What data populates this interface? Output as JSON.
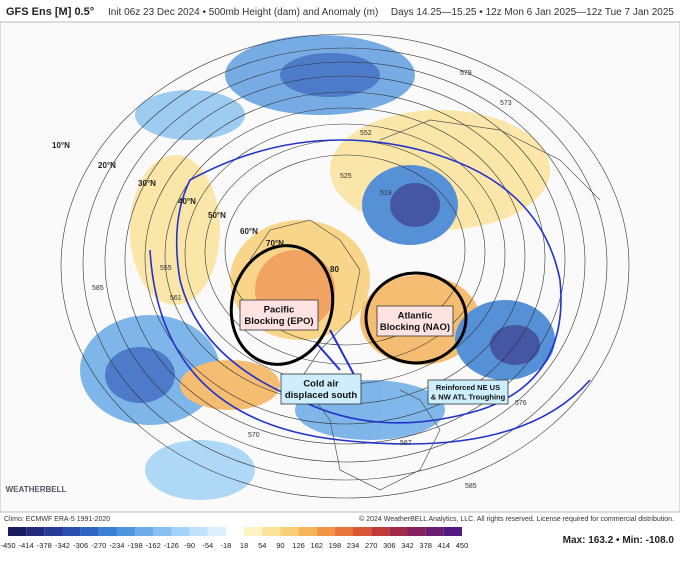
{
  "header": {
    "product": "GFS Ens [M] 0.5°",
    "description": "Init 06z 23 Dec 2024 • 500mb Height (dam) and Anomaly (m)",
    "valid": "Days 14.25—15.25 • 12z Mon 6 Jan 2025—12z Tue 7 Jan 2025"
  },
  "map": {
    "latitude_labels": [
      "10°N",
      "20°N",
      "30°N",
      "40°N",
      "50°N",
      "60°N",
      "70°N",
      "80"
    ],
    "contour_labels": [
      "552",
      "579",
      "573",
      "525",
      "519",
      "561",
      "555",
      "585",
      "570",
      "567",
      "576",
      "585"
    ],
    "annotations": [
      {
        "lines": [
          "Pacific",
          "Blocking (EPO)"
        ]
      },
      {
        "lines": [
          "Atlantic",
          "Blocking (NAO)"
        ]
      },
      {
        "lines": [
          "Cold air",
          "displaced south"
        ]
      },
      {
        "lines": [
          "Reinforced NE US",
          "& NW ATL Troughing"
        ]
      }
    ],
    "logo": "WEATHERBELL"
  },
  "footer": {
    "climo": "Climo: ECMWF ERA-5 1991-2020",
    "copyright": "© 2024 WeatherBELL Analytics, LLC. All rights reserved. License required for commercial distribution.",
    "extremes": "Max: 163.2 • Min: -108.0"
  },
  "colorbar": {
    "ticks": [
      -450,
      -414,
      -378,
      -342,
      -306,
      -270,
      -234,
      -198,
      -162,
      -126,
      -90,
      -54,
      -18,
      18,
      54,
      90,
      126,
      162,
      198,
      234,
      270,
      306,
      342,
      378,
      414,
      450
    ],
    "colors": [
      "#1a1a5e",
      "#232a7a",
      "#263a96",
      "#2a4fae",
      "#2f66c2",
      "#3a7fd2",
      "#4f95de",
      "#6aabe8",
      "#86c0f0",
      "#a3d3f6",
      "#c0e2f9",
      "#dcedfb",
      "#ffffff",
      "#fdf3c4",
      "#fbe39a",
      "#f8cf76",
      "#f5b35a",
      "#f09548",
      "#e8763c",
      "#d95637",
      "#c23a3a",
      "#a22a4a",
      "#85225e",
      "#6b1d72",
      "#521a80"
    ]
  }
}
